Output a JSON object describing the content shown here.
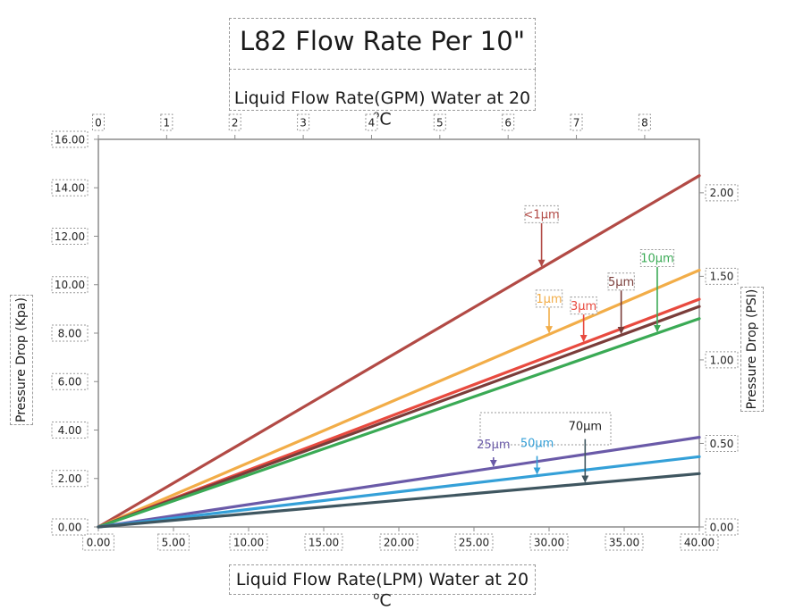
{
  "chart_data": {
    "type": "line",
    "title": "L82 Flow Rate Per 10\"",
    "xlabel": "Liquid Flow Rate(LPM) Water at 20 °C",
    "xlabel_top": "Liquid Flow Rate(GPM) Water at 20 °C",
    "ylabel": "Pressure Drop  (Kpa)",
    "ylabel_right": "Pressure Drop  (PSI)",
    "xlim": [
      0,
      40
    ],
    "ylim": [
      0,
      16
    ],
    "xlim_top": [
      0,
      8.8
    ],
    "ylim_right": [
      0,
      2.32
    ],
    "x_ticks": [
      "0.00",
      "5.00",
      "10.00",
      "15.00",
      "20.00",
      "25.00",
      "30.00",
      "35.00",
      "40.00"
    ],
    "y_ticks": [
      "0.00",
      "2.00",
      "4.00",
      "6.00",
      "8.00",
      "10.00",
      "12.00",
      "14.00",
      "16.00"
    ],
    "x_top_ticks": [
      "0",
      "1",
      "2",
      "3",
      "4",
      "5",
      "6",
      "7",
      "8"
    ],
    "y_right_ticks": [
      "0.00",
      "0.50",
      "1.00",
      "1.50",
      "2.00"
    ],
    "grid": false,
    "series": [
      {
        "name": "<1µm",
        "color": "#b24a45",
        "x": [
          0,
          40
        ],
        "y": [
          0,
          14.5
        ],
        "label_at": 29.5
      },
      {
        "name": "1µm",
        "color": "#f2ad48",
        "x": [
          0,
          40
        ],
        "y": [
          0,
          10.6
        ],
        "label_at": 30.0
      },
      {
        "name": "3µm",
        "color": "#e84a3f",
        "x": [
          0,
          40
        ],
        "y": [
          0,
          9.4
        ],
        "label_at": 32.3
      },
      {
        "name": "5µm",
        "color": "#7a3d3a",
        "x": [
          0,
          40
        ],
        "y": [
          0,
          9.1
        ],
        "label_at": 34.8
      },
      {
        "name": "10µm",
        "color": "#3aaa55",
        "x": [
          0,
          40
        ],
        "y": [
          0,
          8.6
        ],
        "label_at": 37.2
      },
      {
        "name": "25µm",
        "color": "#6a5aa8",
        "x": [
          0,
          40
        ],
        "y": [
          0,
          3.7
        ],
        "label_at": 26.3
      },
      {
        "name": "50µm",
        "color": "#34a0d8",
        "x": [
          0,
          40
        ],
        "y": [
          0,
          2.9
        ],
        "label_at": 29.2
      },
      {
        "name": "70µm",
        "color": "#3f5660",
        "x": [
          0,
          40
        ],
        "y": [
          0,
          2.2
        ],
        "label_at": 32.4
      }
    ]
  }
}
